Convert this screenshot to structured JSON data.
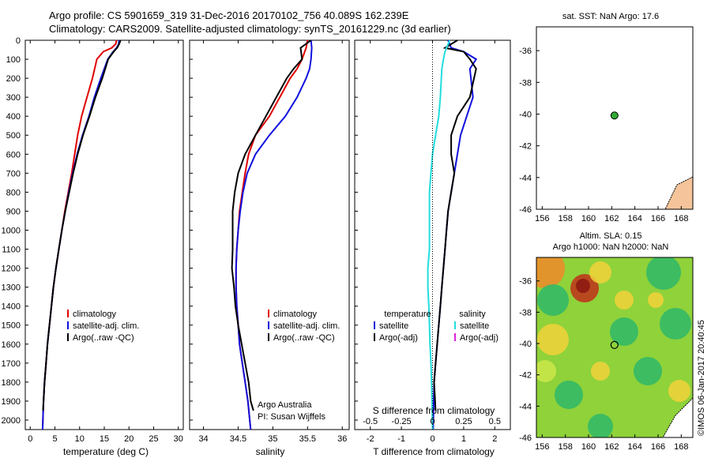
{
  "title_line1": "Argo profile: CS 5901659_319 31-Dec-2016 20170102_756 40.089S 162.239E",
  "title_line2": "Climatology: CARS2009. Satellite-adjusted climatology: synTS_20161229.nc (3d earlier)",
  "footer_credit": "©IMOS 06-Jan-2017 20:40:45",
  "colors": {
    "climatology": "#e00000",
    "satellite": "#1010dd",
    "argo": "#000000",
    "sal_satellite": "#22dddd",
    "sal_argo": "#dd22dd",
    "ocean_bg": "#ffffff",
    "land": "#f5c49a"
  },
  "chart_data": [
    {
      "id": "temperature",
      "type": "line",
      "xlabel": "temperature (deg C)",
      "ylabel": "",
      "xlim": [
        -1,
        31
      ],
      "ylim": [
        2050,
        0
      ],
      "xticks": [
        0,
        5,
        10,
        15,
        20,
        25,
        30
      ],
      "yticks": [
        0,
        100,
        200,
        300,
        400,
        500,
        600,
        700,
        800,
        900,
        1000,
        1100,
        1200,
        1300,
        1400,
        1500,
        1600,
        1700,
        1800,
        1900,
        2000
      ],
      "legend": [
        "climatology",
        "satellite-adj. clim.",
        "Argo(..raw -QC)"
      ],
      "series": [
        {
          "name": "climatology",
          "color": "#e00000",
          "x": [
            17.5,
            17.3,
            16.5,
            14.8,
            13.5,
            12.6,
            11.5,
            10.4,
            9.6,
            9.0,
            8.4,
            7.7,
            7.0,
            6.4,
            5.8,
            5.2,
            4.7,
            4.3,
            3.9,
            3.5,
            3.2,
            2.9,
            2.7,
            2.5
          ],
          "y": [
            0,
            20,
            40,
            60,
            100,
            200,
            300,
            400,
            500,
            600,
            700,
            800,
            900,
            1000,
            1100,
            1200,
            1300,
            1400,
            1500,
            1600,
            1700,
            1800,
            1900,
            2050
          ]
        },
        {
          "name": "satellite-adj. clim.",
          "color": "#1010dd",
          "x": [
            18.0,
            17.9,
            17.5,
            16.8,
            15.7,
            14.3,
            13.0,
            11.9,
            10.6,
            9.5,
            8.6,
            7.8,
            7.1,
            6.4,
            5.8,
            5.2,
            4.7,
            4.3,
            3.9,
            3.5,
            3.2,
            2.9,
            2.7,
            2.5
          ],
          "y": [
            0,
            20,
            40,
            60,
            100,
            200,
            300,
            400,
            500,
            600,
            700,
            800,
            900,
            1000,
            1100,
            1200,
            1300,
            1400,
            1500,
            1600,
            1700,
            1800,
            1900,
            2050
          ]
        },
        {
          "name": "Argo(..raw -QC)",
          "color": "#000000",
          "x": [
            18.3,
            18.0,
            17.6,
            16.9,
            15.8,
            14.6,
            13.2,
            12.0,
            10.7,
            9.6,
            8.7,
            7.9,
            7.1,
            6.4,
            5.8,
            5.2,
            4.7,
            4.3,
            3.9,
            3.5,
            3.2,
            2.9,
            2.7,
            2.6
          ],
          "y": [
            0,
            20,
            40,
            60,
            100,
            200,
            300,
            400,
            500,
            600,
            700,
            800,
            900,
            1000,
            1100,
            1200,
            1300,
            1400,
            1500,
            1600,
            1700,
            1800,
            1900,
            1950
          ]
        }
      ]
    },
    {
      "id": "salinity",
      "type": "line",
      "xlabel": "salinity",
      "ylabel": "",
      "xlim": [
        33.8,
        36.1
      ],
      "ylim": [
        2050,
        0
      ],
      "xticks": [
        34,
        34.5,
        35,
        35.5,
        36
      ],
      "legend": [
        "climatology",
        "satellite-adj. clim.",
        "Argo(..raw -QC)"
      ],
      "annotation": [
        "Argo Australia",
        "PI: Susan Wijffels"
      ],
      "series": [
        {
          "name": "climatology",
          "color": "#e00000",
          "x": [
            35.5,
            35.48,
            35.42,
            35.35,
            35.25,
            35.1,
            34.95,
            34.75,
            34.65,
            34.6,
            34.56,
            34.52,
            34.5,
            34.48,
            34.47,
            34.47,
            34.48,
            34.5,
            34.52,
            34.56,
            34.6,
            34.64,
            34.68
          ],
          "y": [
            0,
            40,
            100,
            150,
            200,
            300,
            400,
            500,
            600,
            700,
            800,
            900,
            1000,
            1100,
            1200,
            1300,
            1400,
            1500,
            1600,
            1700,
            1800,
            1900,
            2050
          ]
        },
        {
          "name": "satellite-adj. clim.",
          "color": "#1010dd",
          "x": [
            35.55,
            35.56,
            35.55,
            35.53,
            35.48,
            35.35,
            35.18,
            34.95,
            34.75,
            34.63,
            34.57,
            34.53,
            34.5,
            34.48,
            34.47,
            34.47,
            34.48,
            34.5,
            34.52,
            34.56,
            34.6,
            34.64,
            34.68
          ],
          "y": [
            0,
            40,
            100,
            150,
            200,
            300,
            400,
            500,
            600,
            700,
            800,
            900,
            1000,
            1100,
            1200,
            1300,
            1400,
            1500,
            1600,
            1700,
            1800,
            1900,
            2050
          ]
        },
        {
          "name": "Argo(..raw -QC)",
          "color": "#000000",
          "x": [
            35.55,
            35.4,
            35.42,
            35.3,
            35.2,
            35.05,
            34.9,
            34.75,
            34.6,
            34.5,
            34.45,
            34.42,
            34.42,
            34.42,
            34.41,
            34.44,
            34.46,
            34.5,
            34.55,
            34.6,
            34.65,
            34.68,
            34.72
          ],
          "y": [
            0,
            40,
            100,
            150,
            200,
            300,
            400,
            500,
            600,
            700,
            800,
            900,
            1000,
            1100,
            1200,
            1300,
            1400,
            1500,
            1600,
            1700,
            1800,
            1900,
            1950
          ]
        }
      ]
    },
    {
      "id": "differences",
      "type": "line",
      "xlabel": "T difference from climatology",
      "xlabel_top": "S difference from climatology",
      "ylim": [
        2050,
        0
      ],
      "xlim": [
        -2.5,
        2.5
      ],
      "xticks": [
        -2,
        -1,
        0,
        1,
        2
      ],
      "xtick_labels_s": [
        "-0.5",
        "-0.25",
        "0",
        "0.25",
        "0.5"
      ],
      "legend_temperature": {
        "title": "temperature",
        "items": [
          "satellite",
          "Argo(-adj)"
        ]
      },
      "legend_salinity": {
        "title": "salinity",
        "items": [
          "satellite",
          "Argo(-adj)"
        ]
      },
      "series": [
        {
          "name": "temperature satellite",
          "color": "#1010dd",
          "x": [
            0.5,
            0.6,
            1.0,
            1.4,
            1.2,
            1.3,
            1.1,
            0.9,
            0.8,
            0.7,
            0.6,
            0.5,
            0.45,
            0.4,
            0.35,
            0.3,
            0.25,
            0.2,
            0.15,
            0.1,
            0.05,
            0.02
          ],
          "y": [
            0,
            40,
            60,
            100,
            150,
            300,
            400,
            500,
            600,
            700,
            800,
            900,
            1000,
            1100,
            1200,
            1300,
            1400,
            1500,
            1600,
            1700,
            1800,
            2050
          ]
        },
        {
          "name": "temperature Argo(-adj)",
          "color": "#000000",
          "x": [
            0.8,
            0.4,
            1.0,
            1.2,
            1.4,
            1.2,
            0.8,
            0.6,
            0.6,
            0.7,
            0.6,
            0.5,
            0.45,
            0.4,
            0.35,
            0.3,
            0.25,
            0.2,
            0.15,
            0.1,
            0.05,
            0.1
          ],
          "y": [
            0,
            40,
            60,
            100,
            150,
            300,
            400,
            500,
            600,
            700,
            800,
            900,
            1000,
            1100,
            1200,
            1300,
            1400,
            1500,
            1600,
            1700,
            1800,
            1950
          ]
        },
        {
          "name": "salinity satellite",
          "color": "#22dddd",
          "x": [
            0.55,
            0.45,
            0.4,
            0.35,
            0.3,
            0.25,
            0.2,
            0.1,
            0.0,
            -0.05,
            -0.1,
            -0.1,
            -0.1,
            -0.1,
            -0.15,
            -0.15,
            -0.12,
            -0.1,
            -0.08,
            -0.05,
            -0.03,
            0.0
          ],
          "y": [
            0,
            40,
            60,
            100,
            150,
            300,
            400,
            500,
            600,
            700,
            800,
            900,
            1000,
            1100,
            1200,
            1300,
            1400,
            1500,
            1600,
            1700,
            1800,
            2050
          ]
        }
      ]
    },
    {
      "id": "sst_map",
      "type": "scatter",
      "title": "sat. SST: NaN Argo: 17.6",
      "xlim": [
        155.5,
        169
      ],
      "ylim": [
        -46,
        -34.5
      ],
      "xticks": [
        156,
        158,
        160,
        162,
        164,
        166,
        168
      ],
      "yticks": [
        -36,
        -38,
        -40,
        -42,
        -44,
        -46
      ],
      "points": [
        {
          "lon": 162.239,
          "lat": -40.089,
          "color": "#33aa33"
        }
      ]
    },
    {
      "id": "sla_map",
      "type": "heatmap",
      "title_line1": "Altim. SLA: 0.15",
      "title_line2": "Argo h1000: NaN h2000: NaN",
      "xlim": [
        155.5,
        169
      ],
      "ylim": [
        -46,
        -34.5
      ],
      "xticks": [
        156,
        158,
        160,
        162,
        164,
        166,
        168
      ],
      "yticks": [
        -36,
        -38,
        -40,
        -42,
        -44,
        -46
      ],
      "points": [
        {
          "lon": 162.239,
          "lat": -40.089
        }
      ]
    }
  ]
}
